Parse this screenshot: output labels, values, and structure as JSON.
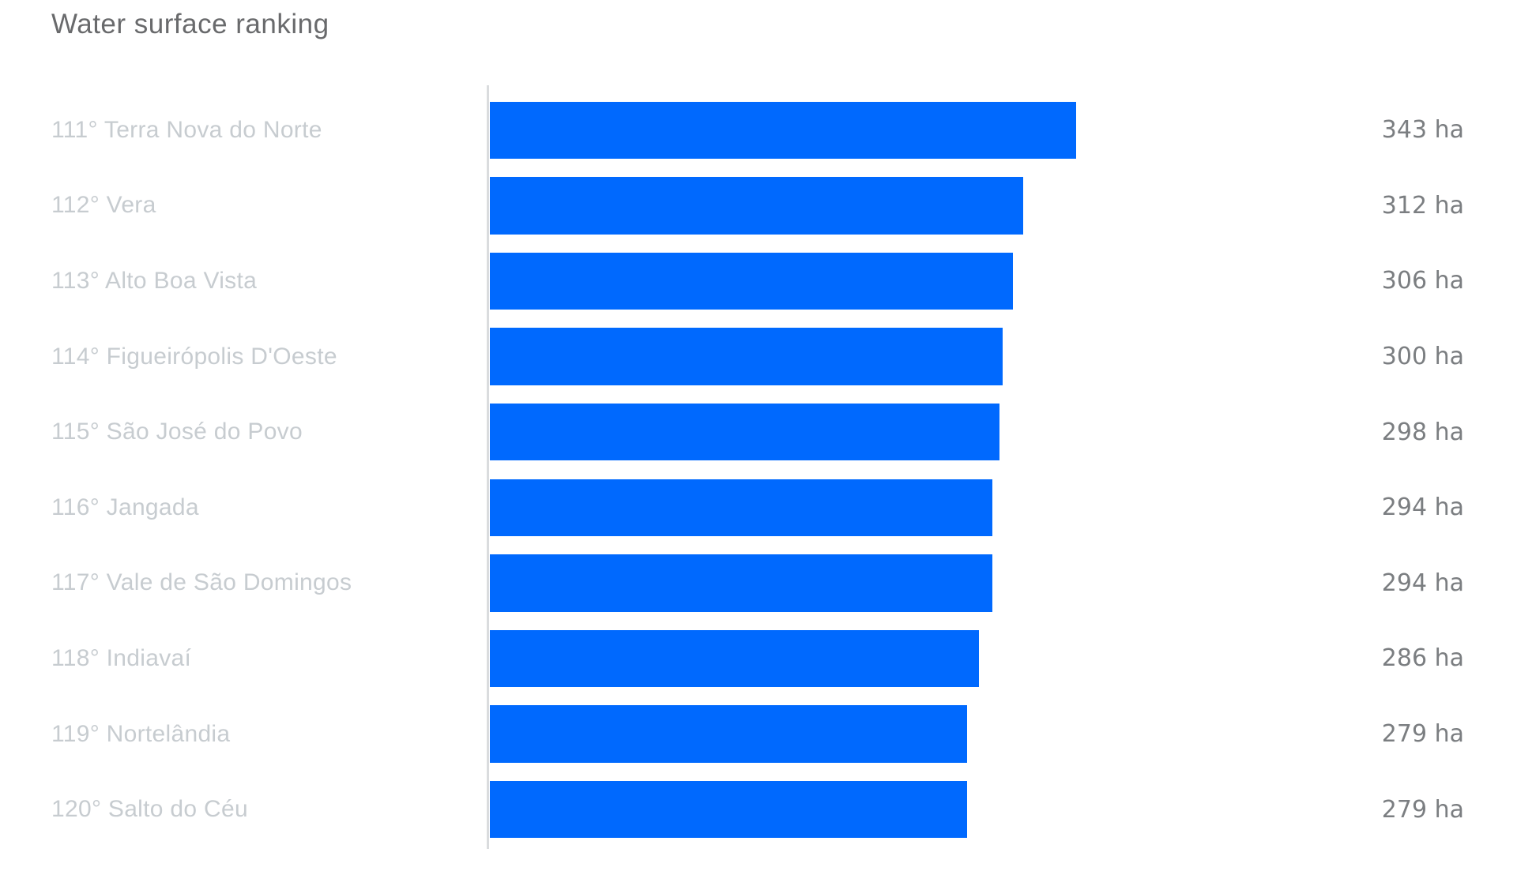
{
  "title": "Water surface ranking",
  "unit": "ha",
  "colors": {
    "bar": "#0069fe",
    "title_text": "#696a6c",
    "category_text": "#c7ccd0",
    "value_text": "#7b7e81",
    "axis_line": "#dadcde"
  },
  "chart_data": {
    "type": "bar",
    "orientation": "horizontal",
    "title": "Water surface ranking",
    "xlabel": "",
    "ylabel": "",
    "xlim": [
      0,
      343
    ],
    "grid": false,
    "legend": false,
    "unit": "ha",
    "categories": [
      "111° Terra Nova do Norte",
      "112° Vera",
      "113° Alto Boa Vista",
      "114° Figueirópolis D'Oeste",
      "115° São José do Povo",
      "116° Jangada",
      "117° Vale de São Domingos",
      "118° Indiavaí",
      "119° Nortelândia",
      "120° Salto do Céu"
    ],
    "values": [
      343,
      312,
      306,
      300,
      298,
      294,
      294,
      286,
      279,
      279
    ],
    "value_labels": [
      "343 ha",
      "312 ha",
      "306 ha",
      "300 ha",
      "298 ha",
      "294 ha",
      "294 ha",
      "286 ha",
      "279 ha",
      "279 ha"
    ]
  }
}
